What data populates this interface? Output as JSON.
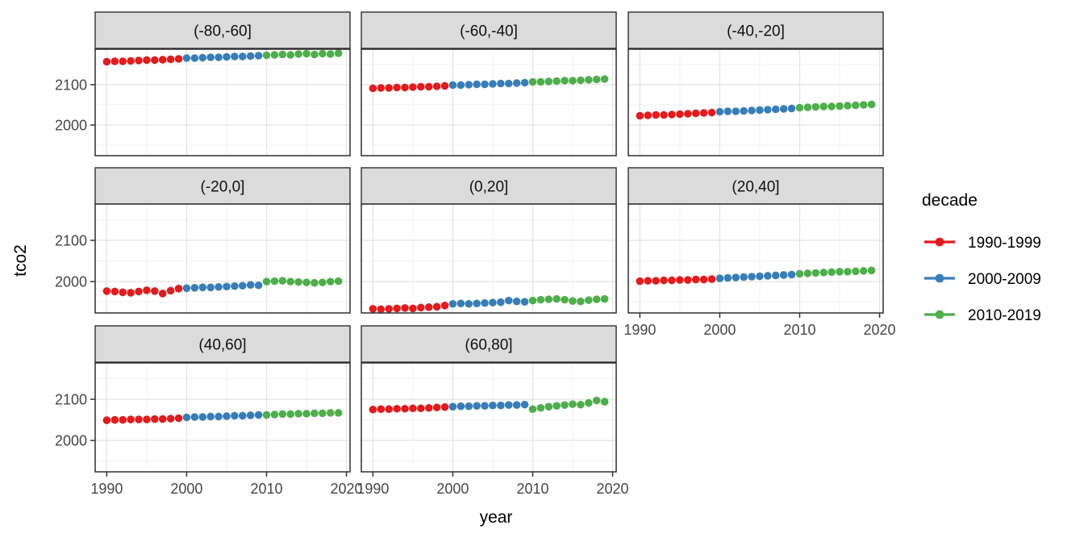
{
  "chart_data": {
    "type": "scatter",
    "title": "",
    "xlabel": "year",
    "ylabel": "tco2",
    "grid": "on",
    "facet_layout": "3-column grid, 8 facets, shared axes",
    "xlim": [
      1988.55,
      2020.45
    ],
    "ylim": [
      1924,
      2188
    ],
    "x_ticks": [
      1990,
      2000,
      2010,
      2020
    ],
    "y_ticks": [
      2000,
      2100
    ],
    "x_minor_ticks": [
      1995,
      2005,
      2015
    ],
    "y_minor_ticks": [
      1950,
      2050,
      2150
    ],
    "legend": {
      "title": "decade",
      "position": "right",
      "entries": [
        {
          "label": "1990-1999",
          "color": "#E41A1C"
        },
        {
          "label": "2000-2009",
          "color": "#377EB8"
        },
        {
          "label": "2010-2019",
          "color": "#4DAF4A"
        }
      ]
    },
    "years": [
      1990,
      1991,
      1992,
      1993,
      1994,
      1995,
      1996,
      1997,
      1998,
      1999,
      2000,
      2001,
      2002,
      2003,
      2004,
      2005,
      2006,
      2007,
      2008,
      2009,
      2010,
      2011,
      2012,
      2013,
      2014,
      2015,
      2016,
      2017,
      2018,
      2019
    ],
    "facets": [
      {
        "label": "(-80,-60]",
        "values": [
          2157,
          2158,
          2158,
          2159,
          2160,
          2161,
          2161,
          2162,
          2163,
          2164,
          2166,
          2166,
          2167,
          2168,
          2168,
          2169,
          2170,
          2170,
          2171,
          2172,
          2173,
          2174,
          2175,
          2174,
          2176,
          2177,
          2175,
          2177,
          2176,
          2178
        ]
      },
      {
        "label": "(-60,-40]",
        "values": [
          2091,
          2092,
          2092,
          2093,
          2093,
          2094,
          2095,
          2095,
          2096,
          2097,
          2099,
          2099,
          2100,
          2101,
          2101,
          2102,
          2103,
          2103,
          2104,
          2105,
          2107,
          2107,
          2108,
          2109,
          2110,
          2110,
          2111,
          2112,
          2113,
          2114
        ]
      },
      {
        "label": "(-40,-20]",
        "values": [
          2023,
          2024,
          2025,
          2025,
          2026,
          2027,
          2028,
          2029,
          2030,
          2031,
          2033,
          2034,
          2034,
          2035,
          2036,
          2037,
          2038,
          2039,
          2040,
          2041,
          2043,
          2044,
          2045,
          2046,
          2046,
          2047,
          2048,
          2049,
          2050,
          2051
        ]
      },
      {
        "label": "(-20,0]",
        "values": [
          1977,
          1976,
          1974,
          1973,
          1976,
          1979,
          1977,
          1971,
          1978,
          1983,
          1984,
          1985,
          1986,
          1986,
          1987,
          1988,
          1989,
          1990,
          1992,
          1991,
          2000,
          2001,
          2002,
          2000,
          1999,
          1998,
          1997,
          1998,
          2000,
          2001
        ]
      },
      {
        "label": "(0,20]",
        "values": [
          1934,
          1933,
          1934,
          1935,
          1936,
          1935,
          1937,
          1938,
          1939,
          1942,
          1946,
          1947,
          1946,
          1947,
          1948,
          1949,
          1950,
          1954,
          1952,
          1951,
          1954,
          1956,
          1957,
          1958,
          1956,
          1953,
          1952,
          1955,
          1957,
          1958
        ]
      },
      {
        "label": "(20,40]",
        "values": [
          2001,
          2002,
          2002,
          2003,
          2003,
          2004,
          2004,
          2005,
          2005,
          2006,
          2008,
          2009,
          2010,
          2011,
          2012,
          2013,
          2014,
          2015,
          2016,
          2017,
          2019,
          2020,
          2021,
          2022,
          2023,
          2024,
          2024,
          2025,
          2026,
          2027
        ]
      },
      {
        "label": "(40,60]",
        "values": [
          2049,
          2050,
          2050,
          2051,
          2051,
          2051,
          2052,
          2052,
          2053,
          2054,
          2056,
          2057,
          2057,
          2058,
          2058,
          2059,
          2060,
          2060,
          2061,
          2062,
          2062,
          2063,
          2064,
          2064,
          2065,
          2065,
          2066,
          2066,
          2067,
          2067
        ]
      },
      {
        "label": "(60,80]",
        "values": [
          2075,
          2076,
          2076,
          2077,
          2077,
          2078,
          2078,
          2079,
          2080,
          2081,
          2082,
          2083,
          2083,
          2084,
          2084,
          2085,
          2085,
          2086,
          2086,
          2087,
          2076,
          2079,
          2082,
          2084,
          2086,
          2088,
          2087,
          2091,
          2097,
          2094
        ]
      }
    ]
  },
  "style_colors": {
    "strip_fill": "#DBDBDB",
    "panel_border": "#2F2F2F",
    "grid_major": "#E3E3E3",
    "grid_minor": "#F1F1F1",
    "tick_mark": "#333333"
  }
}
